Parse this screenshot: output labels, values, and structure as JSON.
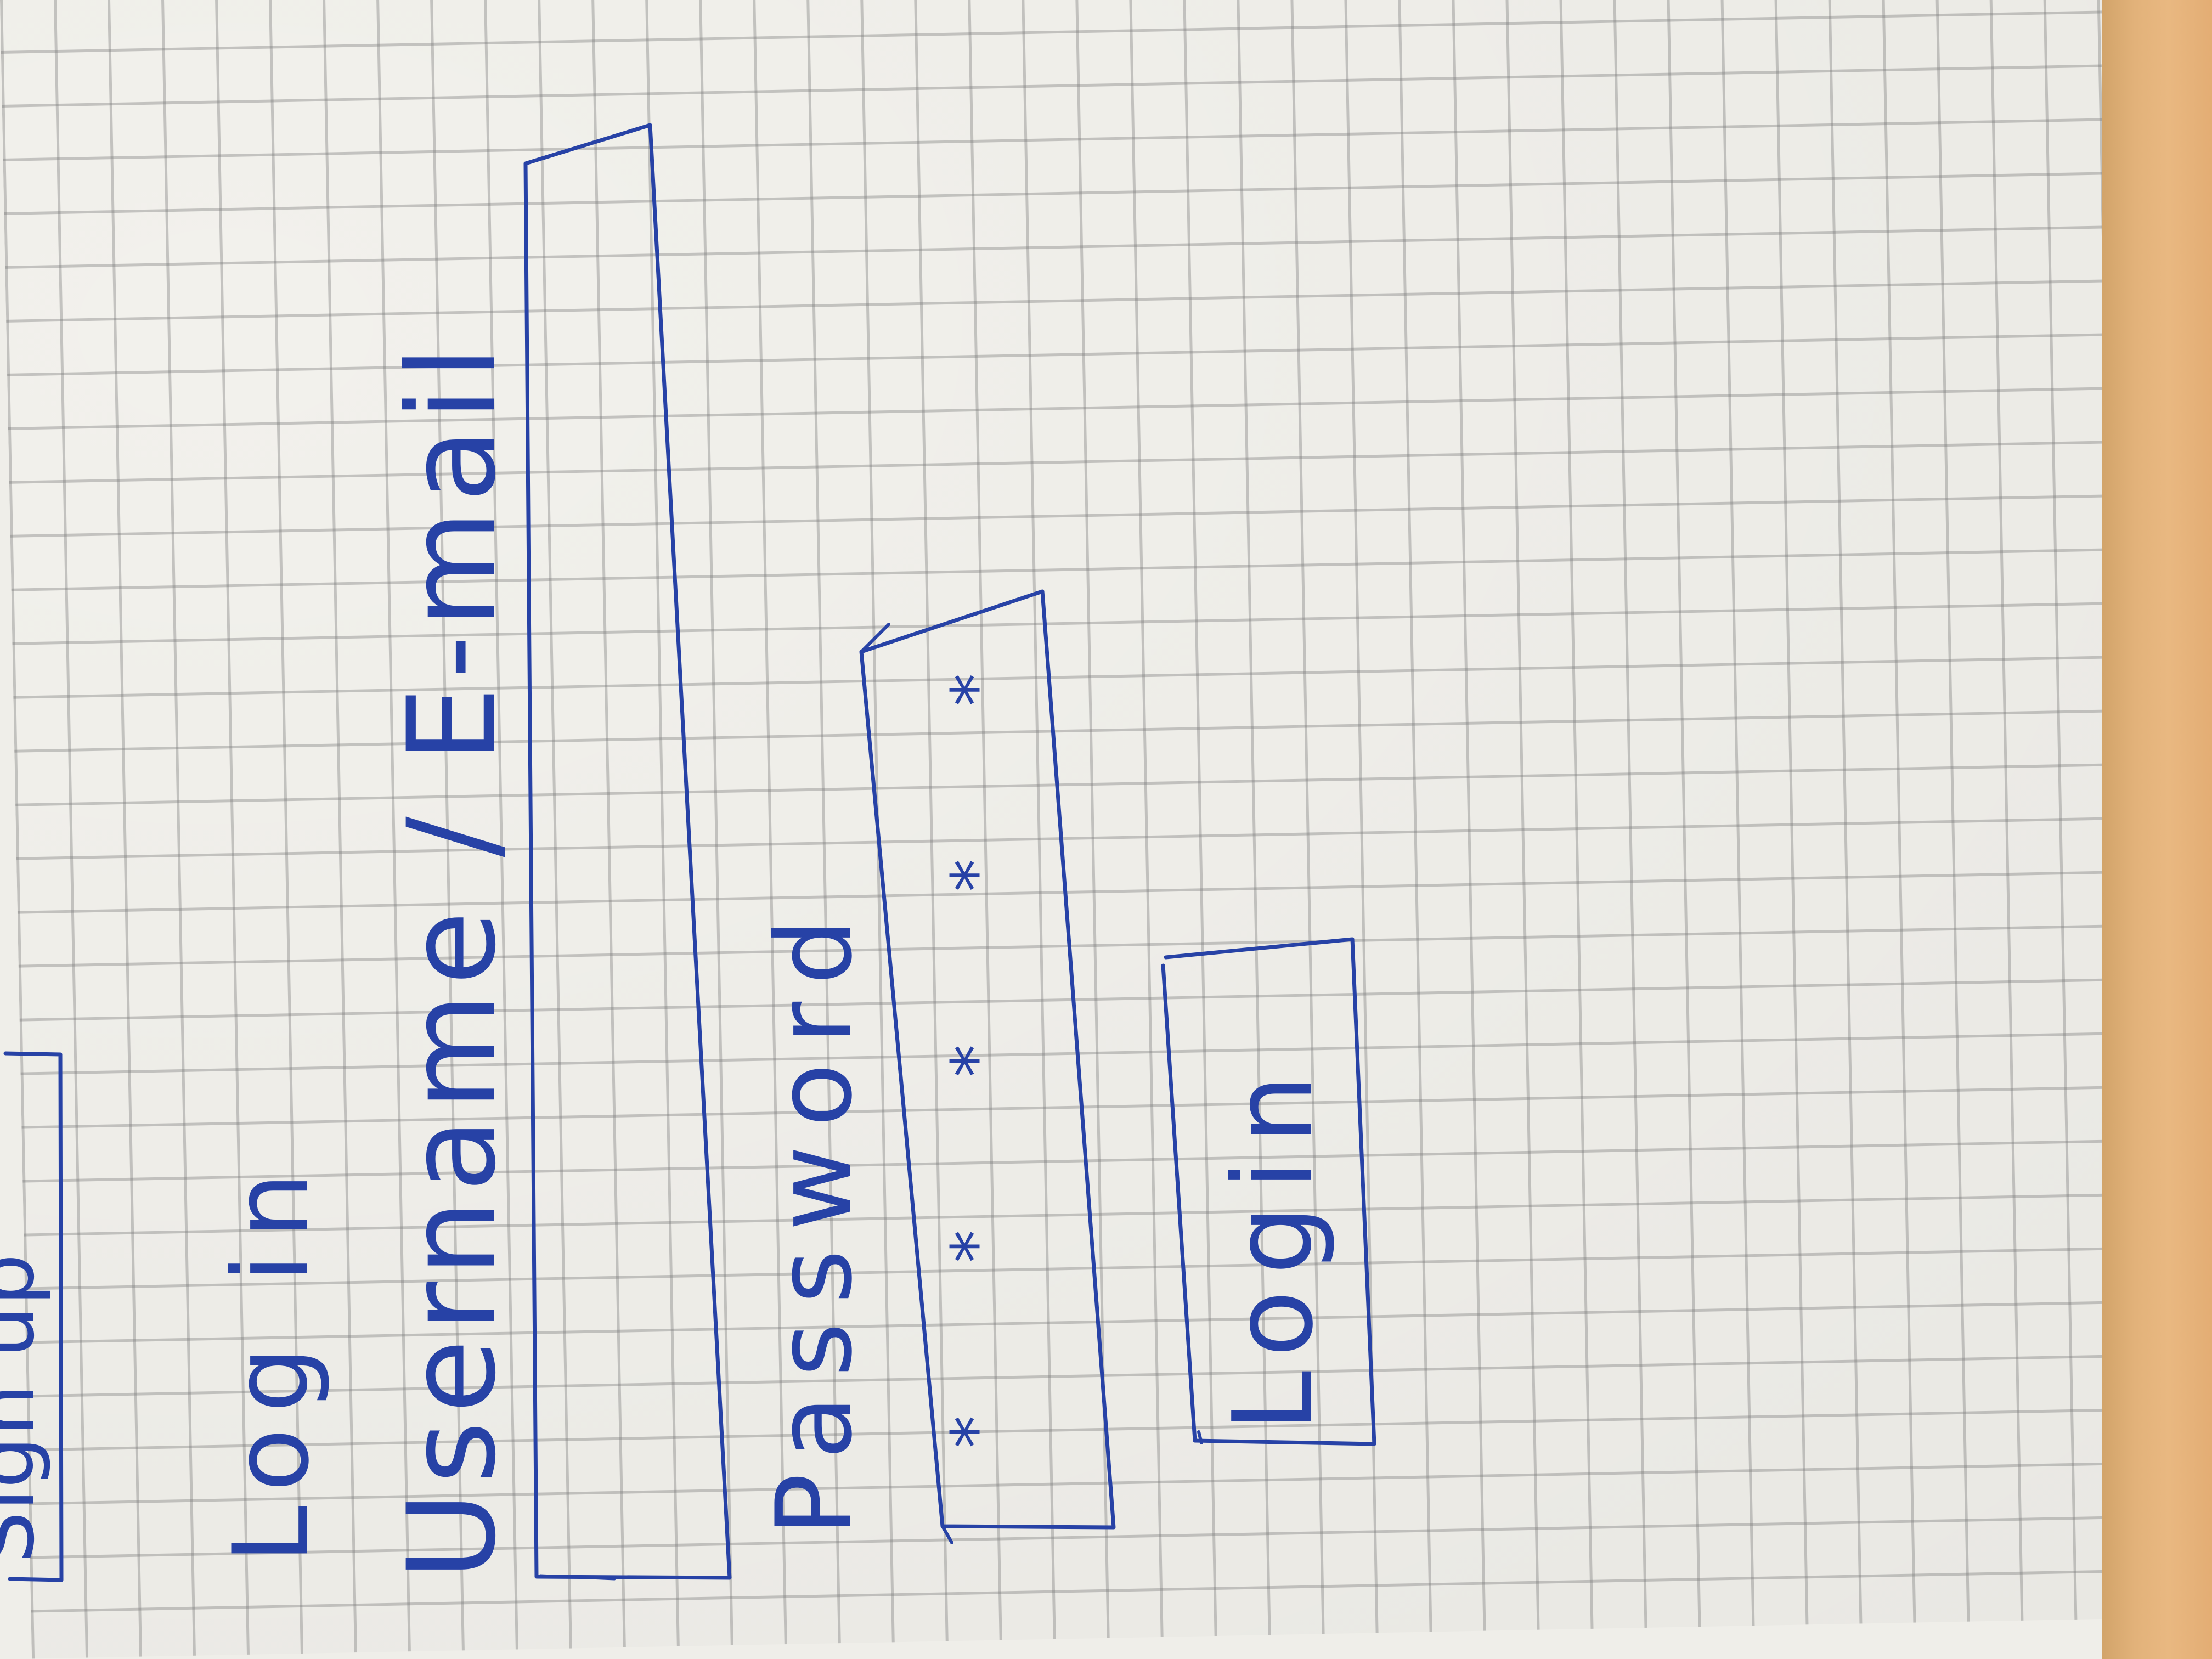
{
  "sketch": {
    "top_button_label": "Sign up",
    "heading": "Log in",
    "username_label": "Username / E-mail",
    "password_label": "Password",
    "password_mask": "* * * * *",
    "login_button_label": "Login"
  },
  "colors": {
    "ink": "#2742a6",
    "paper": "#f2f1ec",
    "grid": "#8a8a8a",
    "desk": "#e2b27a"
  }
}
